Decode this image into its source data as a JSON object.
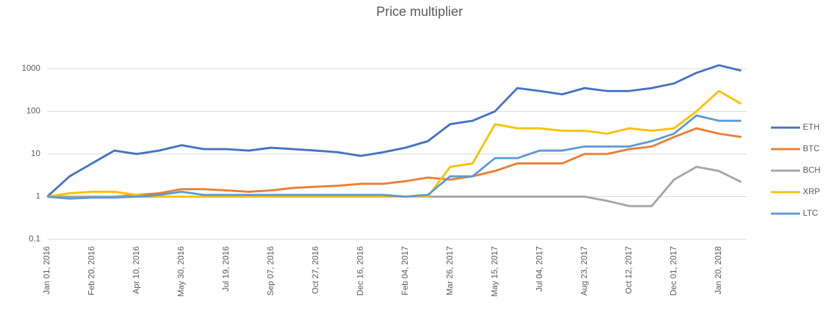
{
  "chart_data": {
    "type": "line",
    "title": "Price multiplier",
    "categories": [
      "Jan 01, 2016",
      null,
      "Feb 20, 2016",
      null,
      "Apr 10, 2016",
      null,
      "May 30, 2016",
      null,
      "Jul 19, 2016",
      null,
      "Sep 07, 2016",
      null,
      "Oct 27, 2016",
      null,
      "Dec 16, 2016",
      null,
      "Feb 04, 2017",
      null,
      "Mar 26, 2017",
      null,
      "May 15, 2017",
      null,
      "Jul 04, 2017",
      null,
      "Aug 23, 2017",
      null,
      "Oct 12, 2017",
      null,
      "Dec 01, 2017",
      null,
      "Jan 20, 2018",
      null
    ],
    "series": [
      {
        "name": "ETH",
        "color": "#4472c4",
        "values": [
          1,
          3,
          6,
          12,
          10,
          12,
          16,
          13,
          13,
          12,
          14,
          13,
          12,
          11,
          9,
          11,
          14,
          20,
          50,
          60,
          100,
          350,
          300,
          250,
          350,
          300,
          300,
          350,
          450,
          800,
          1200,
          900
        ]
      },
      {
        "name": "BTC",
        "color": "#ed7d31",
        "values": [
          1,
          0.9,
          1,
          1,
          1.1,
          1.2,
          1.5,
          1.5,
          1.4,
          1.3,
          1.4,
          1.6,
          1.7,
          1.8,
          2,
          2,
          2.3,
          2.8,
          2.5,
          3,
          4,
          6,
          6,
          6,
          10,
          10,
          13,
          15,
          25,
          40,
          30,
          25
        ]
      },
      {
        "name": "BCH",
        "color": "#a5a5a5",
        "values": [
          1,
          1,
          1,
          1,
          1,
          1,
          1,
          1,
          1,
          1,
          1,
          1,
          1,
          1,
          1,
          1,
          1,
          1,
          1,
          1,
          1,
          1,
          1,
          1,
          1,
          0.8,
          0.6,
          0.6,
          2.5,
          5,
          4,
          2.2
        ]
      },
      {
        "name": "XRP",
        "color": "#ffc000",
        "values": [
          1,
          1.2,
          1.3,
          1.3,
          1.1,
          1,
          1,
          1,
          1,
          1,
          1,
          1,
          1,
          1,
          1,
          1,
          1,
          1,
          5,
          6,
          50,
          40,
          40,
          35,
          35,
          30,
          40,
          35,
          40,
          100,
          300,
          150
        ]
      },
      {
        "name": "LTC",
        "color": "#5b9bd5",
        "values": [
          1,
          0.9,
          0.95,
          0.95,
          1,
          1.1,
          1.3,
          1.1,
          1.1,
          1.1,
          1.1,
          1.1,
          1.1,
          1.1,
          1.1,
          1.1,
          1,
          1.1,
          3,
          3,
          8,
          8,
          12,
          12,
          15,
          15,
          15,
          20,
          30,
          80,
          60,
          60
        ]
      }
    ],
    "ylim": [
      0.1,
      1000
    ],
    "yticks": [
      0.1,
      1,
      10,
      100,
      1000
    ],
    "log_scale": true,
    "grid": true,
    "legend": "right"
  }
}
